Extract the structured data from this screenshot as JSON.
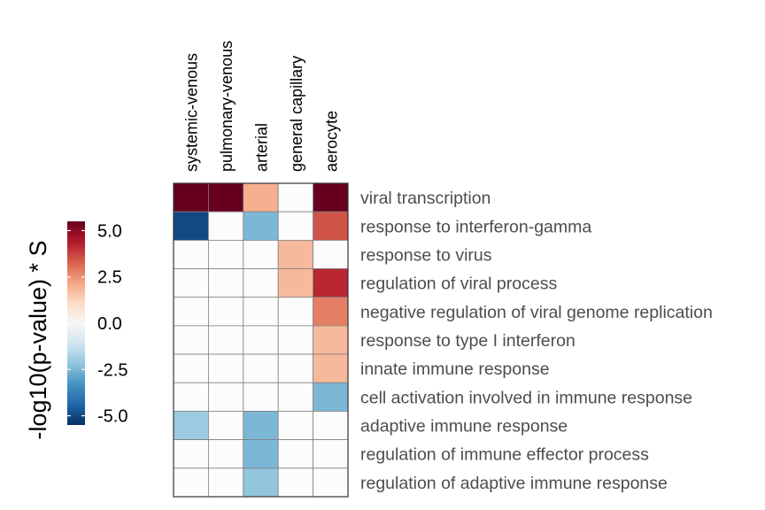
{
  "chart_data": {
    "type": "heatmap",
    "columns": [
      "systemic-venous",
      "pulmonary-venous",
      "arterial",
      "general capillary",
      "aerocyte"
    ],
    "rows": [
      "viral transcription",
      "response to interferon-gamma",
      "response to virus",
      "regulation of viral process",
      "negative regulation of viral genome replication",
      "response to type I interferon",
      "innate immune response",
      "cell activation involved in immune response",
      "adaptive immune response",
      "regulation of immune effector process",
      "regulation of adaptive immune response"
    ],
    "values": [
      [
        6,
        6,
        2,
        0,
        6
      ],
      [
        -5,
        0,
        -2.5,
        0,
        3.5
      ],
      [
        0,
        0,
        0,
        1.8,
        0
      ],
      [
        0,
        0,
        0,
        1.8,
        4.2
      ],
      [
        0,
        0,
        0,
        0,
        2.8
      ],
      [
        0,
        0,
        0,
        0,
        1.8
      ],
      [
        0,
        0,
        0,
        0,
        1.8
      ],
      [
        0,
        0,
        0,
        0,
        -2.5
      ],
      [
        -2,
        0,
        -2.5,
        0,
        0
      ],
      [
        0,
        0,
        -2.5,
        0,
        0
      ],
      [
        0,
        0,
        -2.2,
        0,
        0
      ]
    ],
    "legend": {
      "title": "-log10(p-value) * S",
      "ticks": [
        "5.0",
        "2.5",
        "0.0",
        "-2.5",
        "-5.0"
      ],
      "range": [
        -5.5,
        5.5
      ]
    },
    "colors": {
      "low": "#053061",
      "mid": "#f7f7f7",
      "high": "#67001f",
      "cell_border": "#808080"
    }
  }
}
